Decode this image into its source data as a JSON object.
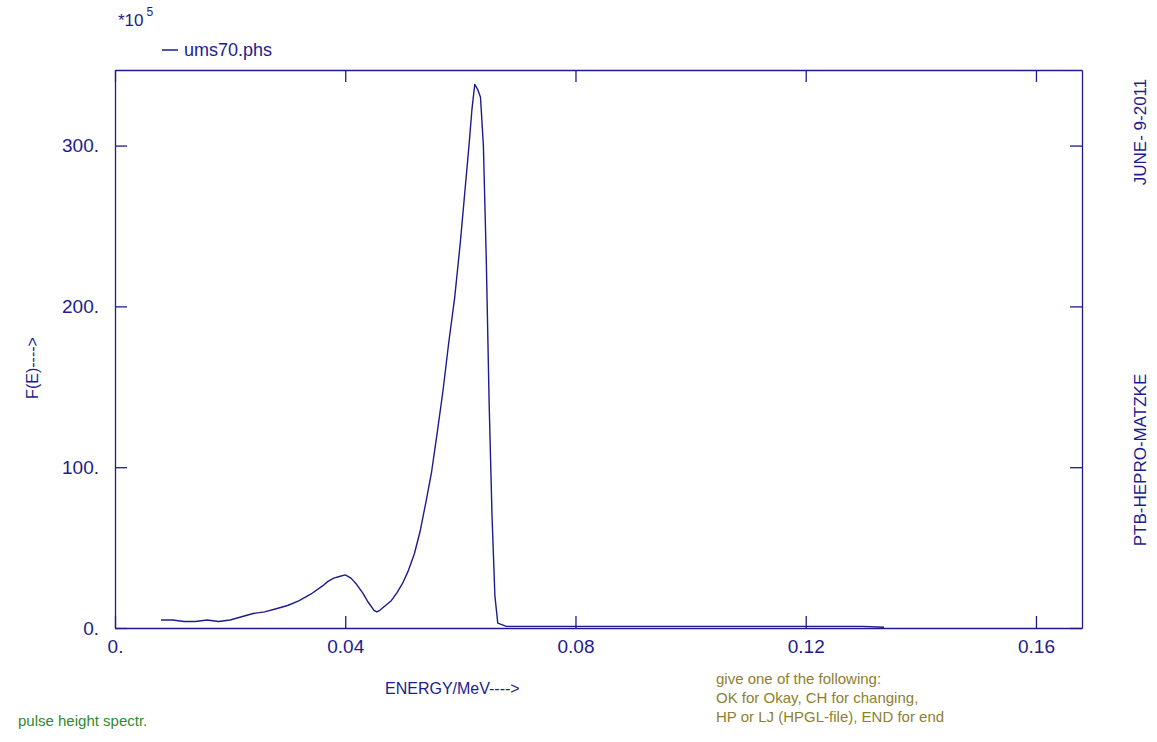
{
  "chart_data": {
    "type": "line",
    "x_label": "ENERGY/MeV---->",
    "y_label": "F(E)---->",
    "y_multiplier": "*10",
    "y_multiplier_exponent": "5",
    "credit": "PTB-HEPRO-MATZKE",
    "date": "JUNE- 9-2011",
    "footer_left": "pulse height spectr.",
    "prompt": [
      "give one of the following:",
      "OK for Okay, CH for changing,",
      "HP or LJ (HPGL-file), END for end"
    ],
    "x": [
      0.008,
      0.01,
      0.012,
      0.014,
      0.016,
      0.018,
      0.02,
      0.022,
      0.024,
      0.026,
      0.028,
      0.03,
      0.032,
      0.034,
      0.036,
      0.037,
      0.038,
      0.039,
      0.04,
      0.041,
      0.042,
      0.043,
      0.044,
      0.045,
      0.0455,
      0.046,
      0.047,
      0.048,
      0.049,
      0.05,
      0.051,
      0.052,
      0.053,
      0.054,
      0.055,
      0.056,
      0.057,
      0.058,
      0.059,
      0.06,
      0.061,
      0.0615,
      0.062,
      0.0625,
      0.063,
      0.0635,
      0.064,
      0.0645,
      0.065,
      0.0655,
      0.066,
      0.0665,
      0.068,
      0.07,
      0.08,
      0.09,
      0.1,
      0.11,
      0.12,
      0.13,
      0.1336
    ],
    "series": [
      {
        "name": "ums70.phs",
        "color": "#1c1c8c",
        "values": [
          5,
          5,
          4,
          4,
          5,
          4,
          5,
          7,
          9,
          10,
          12,
          14,
          17,
          21,
          26,
          29,
          31,
          32,
          33,
          31,
          27,
          22,
          16,
          11,
          10,
          11,
          14,
          17,
          22,
          28,
          36,
          46,
          60,
          78,
          97,
          122,
          148,
          178,
          205,
          240,
          280,
          300,
          322,
          338,
          335,
          330,
          300,
          230,
          140,
          70,
          20,
          3,
          1,
          1,
          1,
          1,
          1,
          1,
          1,
          1,
          0.5
        ]
      }
    ],
    "xlim": [
      0,
      0.168
    ],
    "ylim": [
      0,
      347
    ],
    "xticks": [
      {
        "value": 0,
        "label": "0."
      },
      0.04,
      0.08,
      0.12,
      0.16
    ],
    "yticks": [
      {
        "value": 0,
        "label": "0."
      },
      {
        "value": 100,
        "label": "100."
      },
      {
        "value": 200,
        "label": "200."
      },
      {
        "value": 300,
        "label": "300."
      }
    ],
    "grid": false,
    "legend": "top-left",
    "line_style": "solid"
  }
}
